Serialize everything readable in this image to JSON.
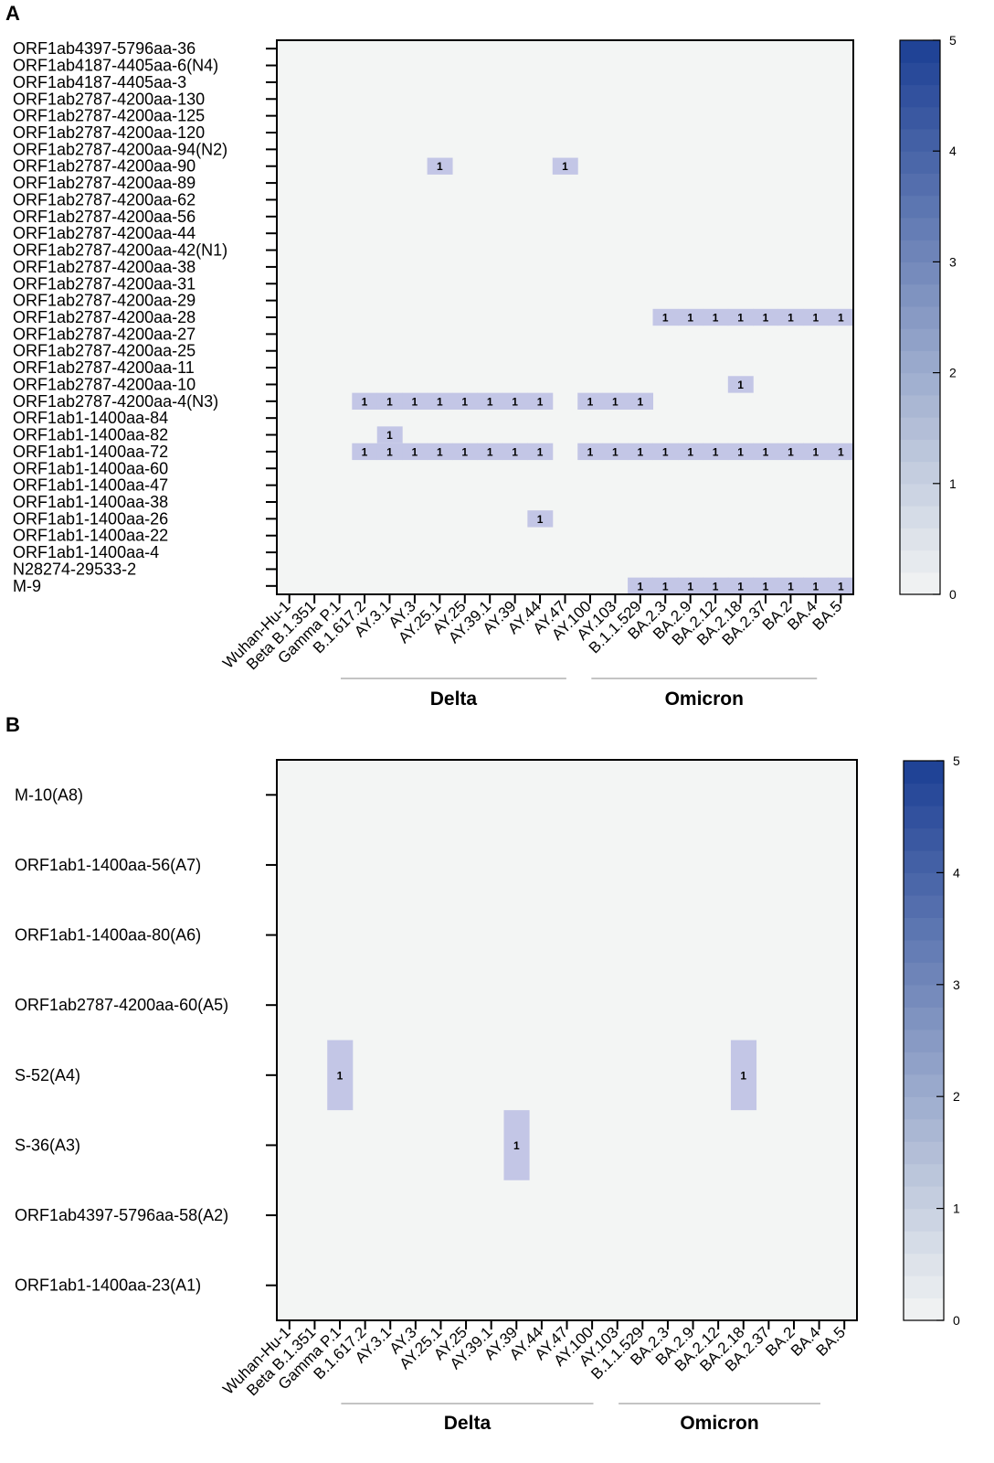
{
  "chart_data": [
    {
      "panel": "A",
      "type": "heatmap",
      "x_categories": [
        "Wuhan-Hu-1",
        "Beta B.1.351",
        "Gamma P.1",
        "B.1.617.2",
        "AY.3.1",
        "AY.3",
        "AY.25.1",
        "AY.25",
        "AY.39.1",
        "AY.39",
        "AY.44",
        "AY.47",
        "AY.100",
        "AY.103",
        "B.1.1.529",
        "BA.2.3",
        "BA.2.9",
        "BA.2.12",
        "BA.2.18",
        "BA.2.37",
        "BA.2",
        "BA.4",
        "BA.5"
      ],
      "y_categories": [
        "ORF1ab4397-5796aa-36",
        "ORF1ab4187-4405aa-6(N4)",
        "ORF1ab4187-4405aa-3",
        "ORF1ab2787-4200aa-130",
        "ORF1ab2787-4200aa-125",
        "ORF1ab2787-4200aa-120",
        "ORF1ab2787-4200aa-94(N2)",
        "ORF1ab2787-4200aa-90",
        "ORF1ab2787-4200aa-89",
        "ORF1ab2787-4200aa-62",
        "ORF1ab2787-4200aa-56",
        "ORF1ab2787-4200aa-44",
        "ORF1ab2787-4200aa-42(N1)",
        "ORF1ab2787-4200aa-38",
        "ORF1ab2787-4200aa-31",
        "ORF1ab2787-4200aa-29",
        "ORF1ab2787-4200aa-28",
        "ORF1ab2787-4200aa-27",
        "ORF1ab2787-4200aa-25",
        "ORF1ab2787-4200aa-11",
        "ORF1ab2787-4200aa-10",
        "ORF1ab2787-4200aa-4(N3)",
        "ORF1ab1-1400aa-84",
        "ORF1ab1-1400aa-82",
        "ORF1ab1-1400aa-72",
        "ORF1ab1-1400aa-60",
        "ORF1ab1-1400aa-47",
        "ORF1ab1-1400aa-38",
        "ORF1ab1-1400aa-26",
        "ORF1ab1-1400aa-22",
        "ORF1ab1-1400aa-4",
        "N28274-29533-2",
        "M-9"
      ],
      "cells": [
        {
          "row": "ORF1ab2787-4200aa-90",
          "col": "AY.25.1",
          "value": 1
        },
        {
          "row": "ORF1ab2787-4200aa-90",
          "col": "AY.47",
          "value": 1
        },
        {
          "row": "ORF1ab2787-4200aa-28",
          "col": "BA.2.3",
          "value": 1
        },
        {
          "row": "ORF1ab2787-4200aa-28",
          "col": "BA.2.9",
          "value": 1
        },
        {
          "row": "ORF1ab2787-4200aa-28",
          "col": "BA.2.12",
          "value": 1
        },
        {
          "row": "ORF1ab2787-4200aa-28",
          "col": "BA.2.18",
          "value": 1
        },
        {
          "row": "ORF1ab2787-4200aa-28",
          "col": "BA.2.37",
          "value": 1
        },
        {
          "row": "ORF1ab2787-4200aa-28",
          "col": "BA.2",
          "value": 1
        },
        {
          "row": "ORF1ab2787-4200aa-28",
          "col": "BA.4",
          "value": 1
        },
        {
          "row": "ORF1ab2787-4200aa-28",
          "col": "BA.5",
          "value": 1
        },
        {
          "row": "ORF1ab2787-4200aa-10",
          "col": "BA.2.18",
          "value": 1
        },
        {
          "row": "ORF1ab2787-4200aa-4(N3)",
          "col": "B.1.617.2",
          "value": 1
        },
        {
          "row": "ORF1ab2787-4200aa-4(N3)",
          "col": "AY.3.1",
          "value": 1
        },
        {
          "row": "ORF1ab2787-4200aa-4(N3)",
          "col": "AY.3",
          "value": 1
        },
        {
          "row": "ORF1ab2787-4200aa-4(N3)",
          "col": "AY.25.1",
          "value": 1
        },
        {
          "row": "ORF1ab2787-4200aa-4(N3)",
          "col": "AY.25",
          "value": 1
        },
        {
          "row": "ORF1ab2787-4200aa-4(N3)",
          "col": "AY.39.1",
          "value": 1
        },
        {
          "row": "ORF1ab2787-4200aa-4(N3)",
          "col": "AY.39",
          "value": 1
        },
        {
          "row": "ORF1ab2787-4200aa-4(N3)",
          "col": "AY.44",
          "value": 1
        },
        {
          "row": "ORF1ab2787-4200aa-4(N3)",
          "col": "AY.100",
          "value": 1
        },
        {
          "row": "ORF1ab2787-4200aa-4(N3)",
          "col": "AY.103",
          "value": 1
        },
        {
          "row": "ORF1ab2787-4200aa-4(N3)",
          "col": "B.1.1.529",
          "value": 1
        },
        {
          "row": "ORF1ab1-1400aa-82",
          "col": "AY.3.1",
          "value": 1
        },
        {
          "row": "ORF1ab1-1400aa-72",
          "col": "B.1.617.2",
          "value": 1
        },
        {
          "row": "ORF1ab1-1400aa-72",
          "col": "AY.3.1",
          "value": 1
        },
        {
          "row": "ORF1ab1-1400aa-72",
          "col": "AY.3",
          "value": 1
        },
        {
          "row": "ORF1ab1-1400aa-72",
          "col": "AY.25.1",
          "value": 1
        },
        {
          "row": "ORF1ab1-1400aa-72",
          "col": "AY.25",
          "value": 1
        },
        {
          "row": "ORF1ab1-1400aa-72",
          "col": "AY.39.1",
          "value": 1
        },
        {
          "row": "ORF1ab1-1400aa-72",
          "col": "AY.39",
          "value": 1
        },
        {
          "row": "ORF1ab1-1400aa-72",
          "col": "AY.44",
          "value": 1
        },
        {
          "row": "ORF1ab1-1400aa-72",
          "col": "AY.100",
          "value": 1
        },
        {
          "row": "ORF1ab1-1400aa-72",
          "col": "AY.103",
          "value": 1
        },
        {
          "row": "ORF1ab1-1400aa-72",
          "col": "B.1.1.529",
          "value": 1
        },
        {
          "row": "ORF1ab1-1400aa-72",
          "col": "BA.2.3",
          "value": 1
        },
        {
          "row": "ORF1ab1-1400aa-72",
          "col": "BA.2.9",
          "value": 1
        },
        {
          "row": "ORF1ab1-1400aa-72",
          "col": "BA.2.12",
          "value": 1
        },
        {
          "row": "ORF1ab1-1400aa-72",
          "col": "BA.2.18",
          "value": 1
        },
        {
          "row": "ORF1ab1-1400aa-72",
          "col": "BA.2.37",
          "value": 1
        },
        {
          "row": "ORF1ab1-1400aa-72",
          "col": "BA.2",
          "value": 1
        },
        {
          "row": "ORF1ab1-1400aa-72",
          "col": "BA.4",
          "value": 1
        },
        {
          "row": "ORF1ab1-1400aa-72",
          "col": "BA.5",
          "value": 1
        },
        {
          "row": "ORF1ab1-1400aa-26",
          "col": "AY.44",
          "value": 1
        },
        {
          "row": "M-9",
          "col": "B.1.1.529",
          "value": 1
        },
        {
          "row": "M-9",
          "col": "BA.2.3",
          "value": 1
        },
        {
          "row": "M-9",
          "col": "BA.2.9",
          "value": 1
        },
        {
          "row": "M-9",
          "col": "BA.2.12",
          "value": 1
        },
        {
          "row": "M-9",
          "col": "BA.2.18",
          "value": 1
        },
        {
          "row": "M-9",
          "col": "BA.2.37",
          "value": 1
        },
        {
          "row": "M-9",
          "col": "BA.2",
          "value": 1
        },
        {
          "row": "M-9",
          "col": "BA.4",
          "value": 1
        },
        {
          "row": "M-9",
          "col": "BA.5",
          "value": 1
        }
      ],
      "groups": [
        {
          "label": "Delta",
          "from": "B.1.617.2",
          "to": "AY.47"
        },
        {
          "label": "Omicron",
          "from": "AY.103",
          "to": "BA.4"
        }
      ],
      "colorbar": {
        "min": 0,
        "max": 5,
        "ticks": [
          0,
          1,
          2,
          3,
          4,
          5
        ],
        "low_color": "#f3f5f4",
        "high_color": "#1c3f94"
      }
    },
    {
      "panel": "B",
      "type": "heatmap",
      "x_categories": [
        "Wuhan-Hu-1",
        "Beta B.1.351",
        "Gamma P.1",
        "B.1.617.2",
        "AY.3.1",
        "AY.3",
        "AY.25.1",
        "AY.25",
        "AY.39.1",
        "AY.39",
        "AY.44",
        "AY.47",
        "AY.100",
        "AY.103",
        "B.1.1.529",
        "BA.2.3",
        "BA.2.9",
        "BA.2.12",
        "BA.2.18",
        "BA.2.37",
        "BA.2",
        "BA.4",
        "BA.5"
      ],
      "y_categories": [
        "M-10(A8)",
        "ORF1ab1-1400aa-56(A7)",
        "ORF1ab1-1400aa-80(A6)",
        "ORF1ab2787-4200aa-60(A5)",
        "S-52(A4)",
        "S-36(A3)",
        "ORF1ab4397-5796aa-58(A2)",
        "ORF1ab1-1400aa-23(A1)"
      ],
      "cells": [
        {
          "row": "S-52(A4)",
          "col": "Gamma P.1",
          "value": 1
        },
        {
          "row": "S-52(A4)",
          "col": "BA.2.18",
          "value": 1
        },
        {
          "row": "S-36(A3)",
          "col": "AY.39",
          "value": 1
        }
      ],
      "groups": [
        {
          "label": "Delta",
          "from": "B.1.617.2",
          "to": "AY.100"
        },
        {
          "label": "Omicron",
          "from": "B.1.1.529",
          "to": "BA.4"
        }
      ],
      "colorbar": {
        "min": 0,
        "max": 5,
        "ticks": [
          0,
          1,
          2,
          3,
          4,
          5
        ],
        "low_color": "#f3f5f4",
        "high_color": "#1c3f94"
      }
    }
  ]
}
